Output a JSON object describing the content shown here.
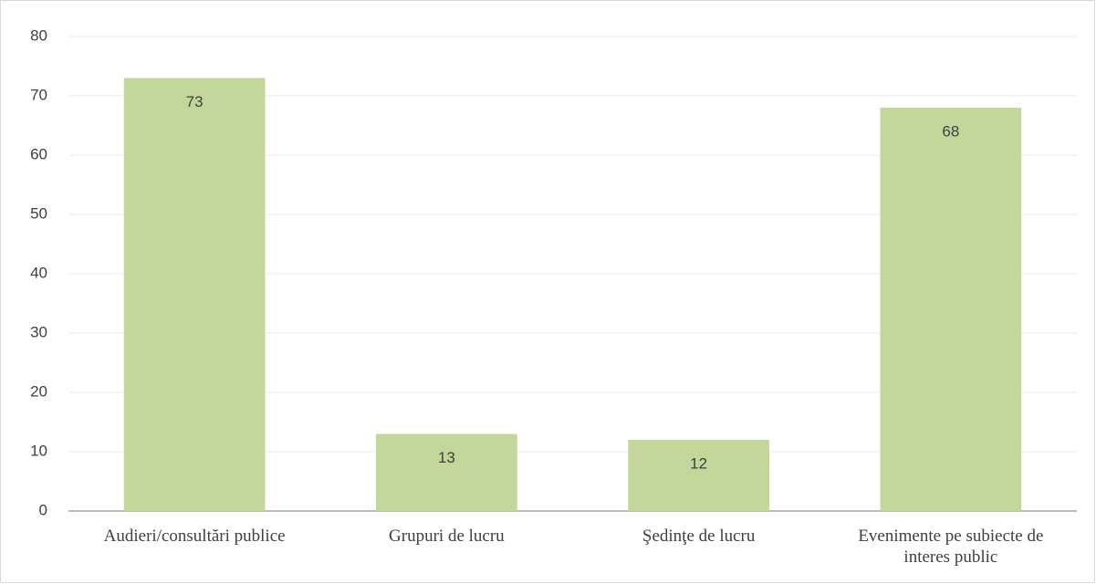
{
  "chart_data": {
    "type": "bar",
    "categories": [
      "Audieri/consultări publice",
      "Grupuri de lucru",
      "Şedinţe de lucru",
      "Evenimente pe subiecte de interes public"
    ],
    "values": [
      73,
      13,
      12,
      68
    ],
    "color": "#c4d79b",
    "ylim": [
      0,
      80
    ],
    "yticks": [
      0,
      10,
      20,
      30,
      40,
      50,
      60,
      70,
      80
    ],
    "grid": true
  }
}
